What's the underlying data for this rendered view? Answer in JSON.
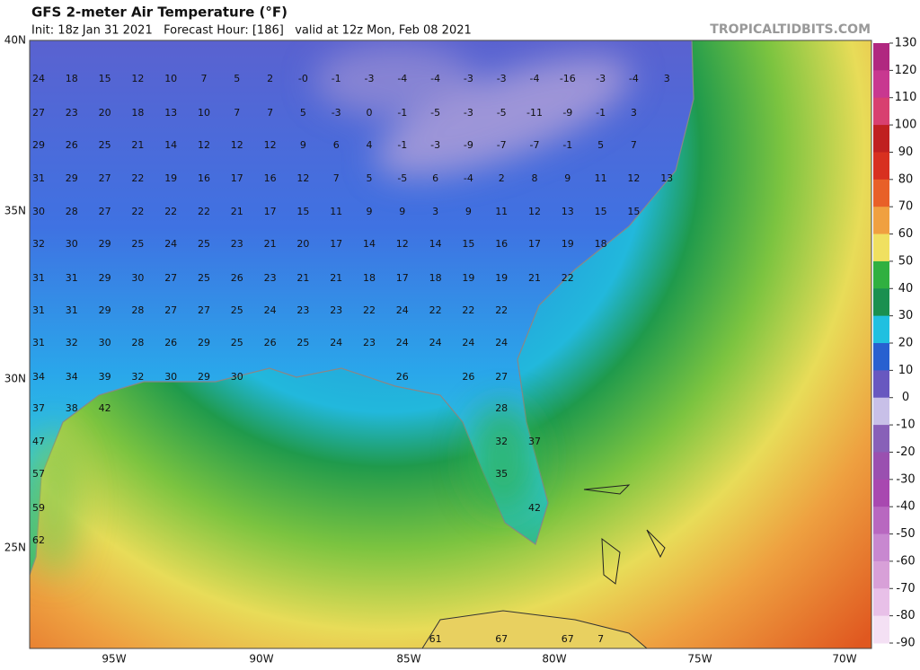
{
  "header": {
    "title": "GFS 2-meter Air Temperature (°F)",
    "subtitle": "Init: 18z Jan 31 2021   Forecast Hour: [186]   valid at 12z Mon, Feb 08 2021",
    "credit": "TROPICALTIDBITS.COM"
  },
  "map": {
    "lat_labels": [
      "40N",
      "35N",
      "30N",
      "25N"
    ],
    "lon_labels": [
      "95W",
      "90W",
      "85W",
      "80W",
      "75W",
      "70W"
    ],
    "station_rows": [
      [
        24,
        18,
        15,
        12,
        10,
        7,
        5,
        2,
        "-0",
        -1,
        -3,
        -4,
        -4,
        -3,
        -3,
        -4,
        -16,
        -3,
        -4,
        3
      ],
      [
        27,
        23,
        20,
        18,
        13,
        10,
        7,
        7,
        5,
        -3,
        0,
        -1,
        -5,
        -3,
        -5,
        -11,
        -9,
        -1,
        3,
        null
      ],
      [
        29,
        26,
        25,
        21,
        14,
        12,
        12,
        12,
        9,
        6,
        4,
        -1,
        -3,
        -9,
        -7,
        -7,
        -1,
        5,
        7,
        null
      ],
      [
        31,
        29,
        27,
        22,
        19,
        16,
        17,
        16,
        12,
        7,
        5,
        -5,
        6,
        -4,
        2,
        8,
        9,
        11,
        12,
        13
      ],
      [
        30,
        28,
        27,
        22,
        22,
        22,
        21,
        17,
        15,
        11,
        9,
        9,
        3,
        9,
        11,
        12,
        13,
        15,
        15,
        null
      ],
      [
        32,
        30,
        29,
        25,
        24,
        25,
        23,
        21,
        20,
        17,
        14,
        12,
        14,
        15,
        16,
        17,
        19,
        18,
        null,
        null
      ],
      [
        31,
        31,
        29,
        30,
        27,
        25,
        26,
        23,
        21,
        21,
        18,
        17,
        18,
        19,
        19,
        21,
        22,
        null,
        null,
        null
      ],
      [
        31,
        31,
        29,
        28,
        27,
        27,
        25,
        24,
        23,
        23,
        22,
        24,
        22,
        22,
        22,
        null,
        null,
        null,
        null,
        null
      ],
      [
        31,
        32,
        30,
        28,
        26,
        29,
        25,
        26,
        25,
        24,
        23,
        24,
        24,
        24,
        24,
        null,
        null,
        null,
        null,
        null
      ],
      [
        34,
        34,
        39,
        32,
        30,
        29,
        30,
        null,
        null,
        null,
        null,
        26,
        null,
        26,
        27,
        null,
        null,
        null,
        null,
        null
      ],
      [
        37,
        38,
        42,
        null,
        null,
        null,
        null,
        null,
        null,
        null,
        null,
        null,
        null,
        null,
        28,
        null,
        null,
        null,
        null,
        null
      ],
      [
        47,
        null,
        null,
        null,
        null,
        null,
        null,
        null,
        null,
        null,
        null,
        null,
        null,
        null,
        32,
        37,
        null,
        null,
        null,
        null
      ],
      [
        57,
        null,
        null,
        null,
        null,
        null,
        null,
        null,
        null,
        null,
        null,
        null,
        null,
        null,
        35,
        null,
        null,
        null,
        null,
        null
      ],
      [
        59,
        null,
        null,
        null,
        null,
        null,
        null,
        null,
        null,
        null,
        null,
        null,
        null,
        null,
        null,
        42,
        null,
        null,
        null,
        null
      ],
      [
        62,
        null,
        null,
        null,
        null,
        null,
        null,
        null,
        null,
        null,
        null,
        null,
        null,
        null,
        null,
        null,
        null,
        null,
        null,
        null
      ],
      [
        null,
        null,
        null,
        null,
        null,
        null,
        null,
        null,
        null,
        null,
        null,
        null,
        61,
        null,
        67,
        null,
        67,
        7,
        null,
        null
      ]
    ]
  },
  "colorbar": {
    "ticks": [
      130,
      120,
      110,
      100,
      90,
      80,
      70,
      60,
      50,
      40,
      30,
      20,
      10,
      0,
      -10,
      -20,
      -30,
      -40,
      -50,
      -60,
      -70,
      -80,
      -90
    ],
    "colors": [
      "#b02880",
      "#c83890",
      "#d84070",
      "#c02020",
      "#d83020",
      "#e86028",
      "#f0a040",
      "#f0e060",
      "#30b040",
      "#1a9050",
      "#20c0e0",
      "#2860d0",
      "#6858c0",
      "#c8c0e8",
      "#8860b8",
      "#9a50b0",
      "#a848b0",
      "#b868c0",
      "#c888d0",
      "#d8a0d8",
      "#e8c0e8",
      "#f4e0f4"
    ]
  }
}
